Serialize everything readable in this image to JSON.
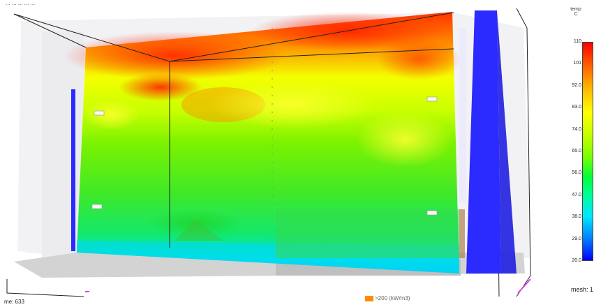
{
  "header": {
    "timestamp_label": "... ...  ... ... ..."
  },
  "footer": {
    "frame_label": "me: 633",
    "hrr_label": ">200 (kW/m3)",
    "hrr_color": "#ff8c00",
    "mesh_label": "mesh: 1"
  },
  "colorbar": {
    "title": "temp\nC",
    "ticks": [
      "110",
      "101",
      "92.0",
      "83.0",
      "74.0",
      "65.0",
      "56.0",
      "47.0",
      "38.0",
      "29.0",
      "20.0"
    ],
    "colors": {
      "hot": "#ff0000",
      "warm": "#ffff00",
      "mid": "#00ff00",
      "cool": "#00e5ff",
      "cold": "#0000ff"
    }
  },
  "scene": {
    "description_tag": "smokeview-temperature-slice",
    "wall_color": "#2b2bff",
    "floor_color": "#cfcfcf"
  }
}
